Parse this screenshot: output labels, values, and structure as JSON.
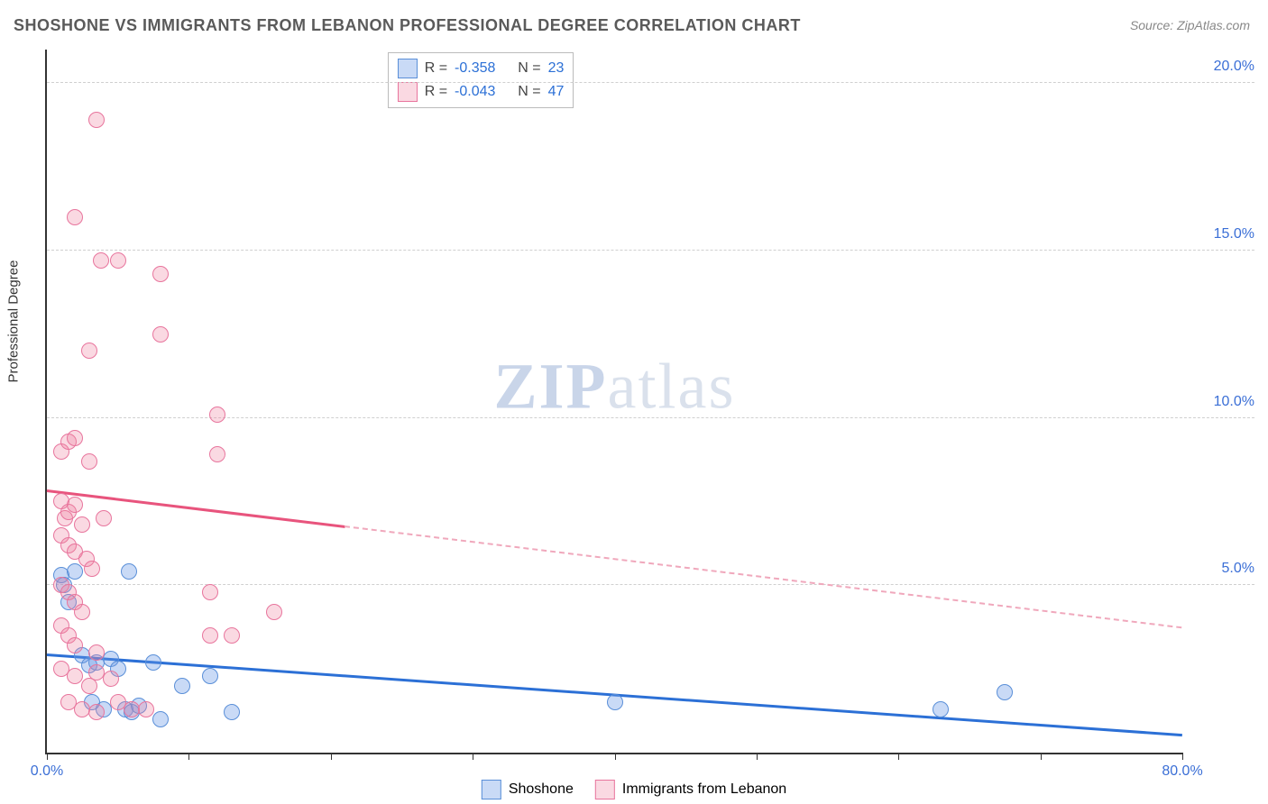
{
  "title": "SHOSHONE VS IMMIGRANTS FROM LEBANON PROFESSIONAL DEGREE CORRELATION CHART",
  "source": "Source: ZipAtlas.com",
  "y_axis_label": "Professional Degree",
  "watermark_a": "ZIP",
  "watermark_b": "atlas",
  "chart": {
    "type": "scatter",
    "xlim": [
      0,
      80
    ],
    "ylim": [
      0,
      21
    ],
    "x_ticks": [
      0,
      10,
      20,
      30,
      40,
      50,
      60,
      70,
      80
    ],
    "x_tick_labels": {
      "0": "0.0%",
      "80": "80.0%"
    },
    "y_ticks": [
      5,
      10,
      15,
      20
    ],
    "y_tick_labels": {
      "5": "5.0%",
      "10": "10.0%",
      "15": "15.0%",
      "20": "20.0%"
    },
    "grid_color": "#d0d0d0",
    "background_color": "#ffffff",
    "marker_size": 18,
    "series": [
      {
        "name": "Shoshone",
        "color_fill": "rgba(100,150,230,0.35)",
        "color_border": "#5a8fd8",
        "r": -0.358,
        "n": 23,
        "trend": {
          "x1": 0,
          "y1": 2.9,
          "x2": 80,
          "y2": 0.5,
          "solid_until_x": 80,
          "color": "#2c70d6"
        },
        "points": [
          [
            1.0,
            5.3
          ],
          [
            1.2,
            5.0
          ],
          [
            1.5,
            4.5
          ],
          [
            2.0,
            5.4
          ],
          [
            2.5,
            2.9
          ],
          [
            3.0,
            2.6
          ],
          [
            3.2,
            1.5
          ],
          [
            3.5,
            2.7
          ],
          [
            4.0,
            1.3
          ],
          [
            4.5,
            2.8
          ],
          [
            5.0,
            2.5
          ],
          [
            5.5,
            1.3
          ],
          [
            6.0,
            1.2
          ],
          [
            6.5,
            1.4
          ],
          [
            7.5,
            2.7
          ],
          [
            8.0,
            1.0
          ],
          [
            9.5,
            2.0
          ],
          [
            11.5,
            2.3
          ],
          [
            13.0,
            1.2
          ],
          [
            40.0,
            1.5
          ],
          [
            63.0,
            1.3
          ],
          [
            67.5,
            1.8
          ],
          [
            5.8,
            5.4
          ]
        ]
      },
      {
        "name": "Immigrants from Lebanon",
        "color_fill": "rgba(240,130,160,0.30)",
        "color_border": "#e8759d",
        "r": -0.043,
        "n": 47,
        "trend": {
          "x1": 0,
          "y1": 7.8,
          "x2": 80,
          "y2": 3.7,
          "solid_until_x": 21,
          "color": "#e8547d"
        },
        "points": [
          [
            3.5,
            18.9
          ],
          [
            2.0,
            16.0
          ],
          [
            3.8,
            14.7
          ],
          [
            5.0,
            14.7
          ],
          [
            8.0,
            14.3
          ],
          [
            3.0,
            12.0
          ],
          [
            8.0,
            12.5
          ],
          [
            12.0,
            10.1
          ],
          [
            1.0,
            9.0
          ],
          [
            1.5,
            9.3
          ],
          [
            2.0,
            9.4
          ],
          [
            3.0,
            8.7
          ],
          [
            12.0,
            8.9
          ],
          [
            1.0,
            7.5
          ],
          [
            1.3,
            7.0
          ],
          [
            1.5,
            7.2
          ],
          [
            2.0,
            7.4
          ],
          [
            2.5,
            6.8
          ],
          [
            1.0,
            6.5
          ],
          [
            1.5,
            6.2
          ],
          [
            2.0,
            6.0
          ],
          [
            2.8,
            5.8
          ],
          [
            3.2,
            5.5
          ],
          [
            1.0,
            5.0
          ],
          [
            1.5,
            4.8
          ],
          [
            2.0,
            4.5
          ],
          [
            2.5,
            4.2
          ],
          [
            11.5,
            4.8
          ],
          [
            1.0,
            3.8
          ],
          [
            1.5,
            3.5
          ],
          [
            2.0,
            3.2
          ],
          [
            3.5,
            3.0
          ],
          [
            11.5,
            3.5
          ],
          [
            13.0,
            3.5
          ],
          [
            16.0,
            4.2
          ],
          [
            1.0,
            2.5
          ],
          [
            2.0,
            2.3
          ],
          [
            3.0,
            2.0
          ],
          [
            3.5,
            2.4
          ],
          [
            4.5,
            2.2
          ],
          [
            1.5,
            1.5
          ],
          [
            2.5,
            1.3
          ],
          [
            3.5,
            1.2
          ],
          [
            5.0,
            1.5
          ],
          [
            6.0,
            1.3
          ],
          [
            7.0,
            1.3
          ],
          [
            4.0,
            7.0
          ]
        ]
      }
    ]
  },
  "legend_top": {
    "rows": [
      {
        "swatch": "blue",
        "r_label": "R =",
        "r_val": "-0.358",
        "n_label": "N =",
        "n_val": "23"
      },
      {
        "swatch": "pink",
        "r_label": "R =",
        "r_val": "-0.043",
        "n_label": "N =",
        "n_val": "47"
      }
    ]
  },
  "legend_bottom": {
    "items": [
      {
        "swatch": "blue",
        "label": "Shoshone"
      },
      {
        "swatch": "pink",
        "label": "Immigrants from Lebanon"
      }
    ]
  }
}
